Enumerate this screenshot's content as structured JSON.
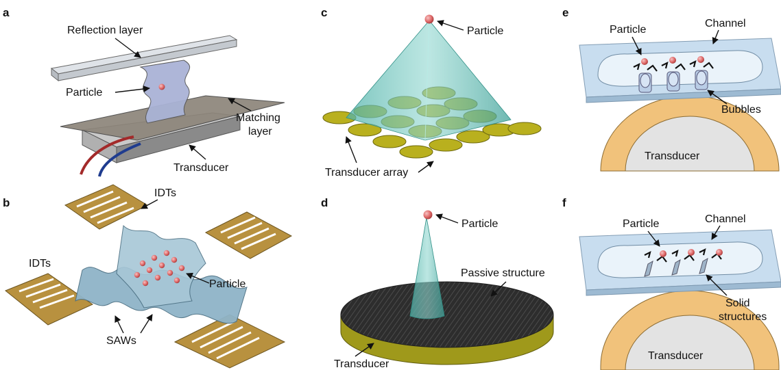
{
  "panels": {
    "a": {
      "letter": "a",
      "labels": {
        "reflection": "Reflection layer",
        "particle": "Particle",
        "matching_1": "Matching",
        "matching_2": "layer",
        "transducer": "Transducer"
      }
    },
    "b": {
      "letter": "b",
      "labels": {
        "idts_top": "IDTs",
        "idts_left": "IDTs",
        "particle": "Particle",
        "saws": "SAWs"
      }
    },
    "c": {
      "letter": "c",
      "labels": {
        "particle": "Particle",
        "array": "Transducer array"
      }
    },
    "d": {
      "letter": "d",
      "labels": {
        "particle": "Particle",
        "passive": "Passive structure",
        "transducer": "Transducer"
      }
    },
    "e": {
      "letter": "e",
      "labels": {
        "particle": "Particle",
        "channel": "Channel",
        "bubbles": "Bubbles",
        "transducer": "Transducer"
      }
    },
    "f": {
      "letter": "f",
      "labels": {
        "particle": "Particle",
        "channel": "Channel",
        "solid_1": "Solid",
        "solid_2": "structures",
        "transducer": "Transducer"
      }
    }
  },
  "colors": {
    "glass": "#cfd5dc",
    "membrane": "#aab3d6",
    "plate": "#8d857a",
    "transducer_gray": "#9b9b9b",
    "gold": "#b8913f",
    "wave": "#8fb4c8",
    "cone": "#5fbcb3",
    "disk": "#b9b01e",
    "particle": "#e06a6a",
    "ring": "#f1c27b",
    "channel": "#c6dcef"
  }
}
